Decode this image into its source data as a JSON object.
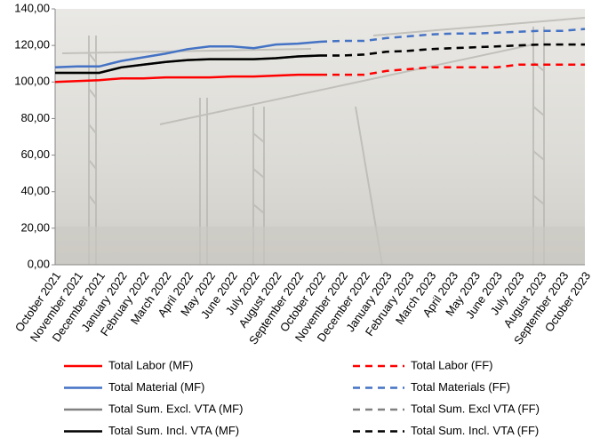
{
  "chart_data": {
    "type": "line",
    "categories": [
      "October 2021",
      "November 2021",
      "December 2021",
      "January 2022",
      "February 2022",
      "March 2022",
      "April 2022",
      "May 2022",
      "June 2022",
      "July 2022",
      "August 2022",
      "September 2022",
      "October 2022",
      "November 2022",
      "December 2022",
      "January 2023",
      "February 2023",
      "March 2023",
      "April 2023",
      "May 2023",
      "June 2023",
      "July 2023",
      "August 2023",
      "September 2023",
      "October 2023"
    ],
    "series": [
      {
        "name": "Total Labor (MF)",
        "color": "#ff0000",
        "style": "solid",
        "values": [
          100,
          100.5,
          101,
          102,
          102,
          102.5,
          102.5,
          102.5,
          103,
          103,
          103.5,
          104,
          104,
          null,
          null,
          null,
          null,
          null,
          null,
          null,
          null,
          null,
          null,
          null,
          null
        ]
      },
      {
        "name": "Total Material (MF)",
        "color": "#4472c4",
        "style": "solid",
        "values": [
          108,
          108.5,
          108.5,
          111.5,
          113.5,
          115.5,
          118,
          119.5,
          119.5,
          118.5,
          120.5,
          121,
          122,
          null,
          null,
          null,
          null,
          null,
          null,
          null,
          null,
          null,
          null,
          null,
          null
        ]
      },
      {
        "name": "Total Sum. Excl. VTA (MF)",
        "color": "#808080",
        "style": "solid",
        "values": [
          105,
          105,
          105,
          108,
          109.5,
          111,
          112,
          112.5,
          112.5,
          112.5,
          113,
          114,
          114.5,
          null,
          null,
          null,
          null,
          null,
          null,
          null,
          null,
          null,
          null,
          null,
          null
        ]
      },
      {
        "name": "Total Sum. Incl. VTA (MF)",
        "color": "#000000",
        "style": "solid",
        "values": [
          105,
          105,
          105,
          108,
          109.5,
          111,
          112,
          112.5,
          112.5,
          112.5,
          113,
          114,
          114.5,
          null,
          null,
          null,
          null,
          null,
          null,
          null,
          null,
          null,
          null,
          null,
          null
        ]
      },
      {
        "name": "Total Labor (FF)",
        "color": "#ff0000",
        "style": "dashed",
        "values": [
          null,
          null,
          null,
          null,
          null,
          null,
          null,
          null,
          null,
          null,
          null,
          null,
          104,
          104,
          104,
          106,
          107,
          108,
          108,
          108,
          108,
          109.5,
          109.5,
          109.5,
          109.5
        ]
      },
      {
        "name": "Total Materials (FF)",
        "color": "#4472c4",
        "style": "dashed",
        "values": [
          null,
          null,
          null,
          null,
          null,
          null,
          null,
          null,
          null,
          null,
          null,
          null,
          122,
          122.5,
          122.5,
          124,
          125,
          126,
          126.5,
          126.5,
          127,
          127.5,
          128,
          128,
          129
        ]
      },
      {
        "name": "Total Sum. Excl VTA (FF)",
        "color": "#808080",
        "style": "dashed",
        "values": [
          null,
          null,
          null,
          null,
          null,
          null,
          null,
          null,
          null,
          null,
          null,
          null,
          114.5,
          114.5,
          115,
          116.5,
          117,
          118,
          118.5,
          119,
          119.5,
          120,
          120.5,
          120.5,
          120.5
        ]
      },
      {
        "name": "Total Sum. Incl. VTA (FF)",
        "color": "#000000",
        "style": "dashed",
        "values": [
          null,
          null,
          null,
          null,
          null,
          null,
          null,
          null,
          null,
          null,
          null,
          null,
          114.5,
          114.5,
          115,
          116.5,
          117,
          118,
          118.5,
          119,
          119.5,
          120,
          120.5,
          120.5,
          120.5
        ]
      }
    ],
    "ylim": [
      0,
      140
    ],
    "yticks": [
      {
        "value": 0,
        "label": "0,00"
      },
      {
        "value": 20,
        "label": "20,00"
      },
      {
        "value": 40,
        "label": "40,00"
      },
      {
        "value": 60,
        "label": "60,00"
      },
      {
        "value": 80,
        "label": "80,00"
      },
      {
        "value": 100,
        "label": "100,00"
      },
      {
        "value": 120,
        "label": "120,00"
      },
      {
        "value": 140,
        "label": "140,00"
      }
    ],
    "grid": false
  }
}
